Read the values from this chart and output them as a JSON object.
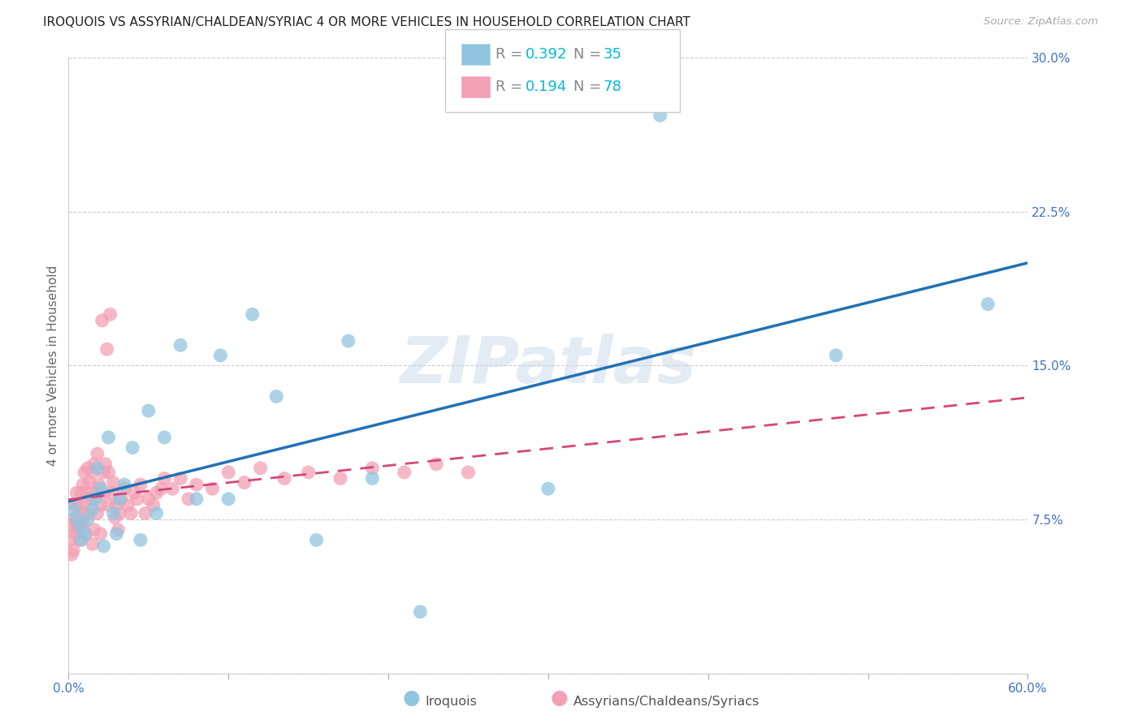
{
  "title": "IROQUOIS VS ASSYRIAN/CHALDEAN/SYRIAC 4 OR MORE VEHICLES IN HOUSEHOLD CORRELATION CHART",
  "source": "Source: ZipAtlas.com",
  "ylabel": "4 or more Vehicles in Household",
  "xlim": [
    0.0,
    0.6
  ],
  "ylim": [
    0.0,
    0.3
  ],
  "xtick_vals": [
    0.0,
    0.1,
    0.2,
    0.3,
    0.4,
    0.5,
    0.6
  ],
  "xtick_labels": [
    "0.0%",
    "",
    "",
    "",
    "",
    "",
    "60.0%"
  ],
  "ytick_vals": [
    0.0,
    0.075,
    0.15,
    0.225,
    0.3
  ],
  "ytick_labels": [
    "",
    "7.5%",
    "15.0%",
    "22.5%",
    "30.0%"
  ],
  "legend_blue_r": "0.392",
  "legend_blue_n": "35",
  "legend_pink_r": "0.194",
  "legend_pink_n": "78",
  "blue_scatter_color": "#92c5de",
  "pink_scatter_color": "#f4a0b5",
  "blue_line_color": "#2171b5",
  "pink_line_color": "#d4477a",
  "grid_color": "#cccccc",
  "watermark": "ZIPatlas",
  "label_blue": "Iroquois",
  "label_pink": "Assyrians/Chaldeans/Syriacs",
  "tick_color": "#4472C4",
  "iroquois_x": [
    0.003,
    0.005,
    0.007,
    0.008,
    0.01,
    0.012,
    0.015,
    0.017,
    0.018,
    0.02,
    0.022,
    0.025,
    0.028,
    0.03,
    0.032,
    0.035,
    0.04,
    0.045,
    0.05,
    0.055,
    0.06,
    0.07,
    0.08,
    0.095,
    0.1,
    0.115,
    0.13,
    0.155,
    0.175,
    0.19,
    0.22,
    0.3,
    0.37,
    0.48,
    0.575
  ],
  "iroquois_y": [
    0.08,
    0.076,
    0.072,
    0.065,
    0.068,
    0.075,
    0.08,
    0.085,
    0.1,
    0.09,
    0.062,
    0.115,
    0.078,
    0.068,
    0.085,
    0.092,
    0.11,
    0.065,
    0.128,
    0.078,
    0.115,
    0.16,
    0.085,
    0.155,
    0.085,
    0.175,
    0.135,
    0.065,
    0.162,
    0.095,
    0.03,
    0.09,
    0.272,
    0.155,
    0.18
  ],
  "assyrian_x": [
    0.001,
    0.002,
    0.002,
    0.003,
    0.003,
    0.004,
    0.004,
    0.005,
    0.005,
    0.006,
    0.006,
    0.007,
    0.007,
    0.008,
    0.008,
    0.009,
    0.009,
    0.01,
    0.01,
    0.011,
    0.011,
    0.012,
    0.012,
    0.013,
    0.013,
    0.014,
    0.015,
    0.015,
    0.016,
    0.016,
    0.017,
    0.018,
    0.018,
    0.019,
    0.02,
    0.02,
    0.021,
    0.022,
    0.022,
    0.023,
    0.024,
    0.025,
    0.025,
    0.026,
    0.027,
    0.028,
    0.029,
    0.03,
    0.031,
    0.032,
    0.033,
    0.035,
    0.037,
    0.039,
    0.041,
    0.043,
    0.045,
    0.048,
    0.05,
    0.053,
    0.055,
    0.058,
    0.06,
    0.065,
    0.07,
    0.075,
    0.08,
    0.09,
    0.1,
    0.11,
    0.12,
    0.135,
    0.15,
    0.17,
    0.19,
    0.21,
    0.23,
    0.25
  ],
  "assyrian_y": [
    0.065,
    0.058,
    0.072,
    0.06,
    0.075,
    0.068,
    0.082,
    0.073,
    0.088,
    0.07,
    0.082,
    0.065,
    0.078,
    0.072,
    0.088,
    0.073,
    0.092,
    0.078,
    0.098,
    0.083,
    0.068,
    0.088,
    0.1,
    0.078,
    0.093,
    0.085,
    0.063,
    0.098,
    0.07,
    0.102,
    0.088,
    0.107,
    0.078,
    0.092,
    0.068,
    0.082,
    0.172,
    0.088,
    0.098,
    0.102,
    0.158,
    0.082,
    0.098,
    0.175,
    0.088,
    0.093,
    0.076,
    0.082,
    0.07,
    0.078,
    0.085,
    0.09,
    0.082,
    0.078,
    0.088,
    0.085,
    0.092,
    0.078,
    0.085,
    0.082,
    0.088,
    0.09,
    0.095,
    0.09,
    0.095,
    0.085,
    0.092,
    0.09,
    0.098,
    0.093,
    0.1,
    0.095,
    0.098,
    0.095,
    0.1,
    0.098,
    0.102,
    0.098
  ]
}
